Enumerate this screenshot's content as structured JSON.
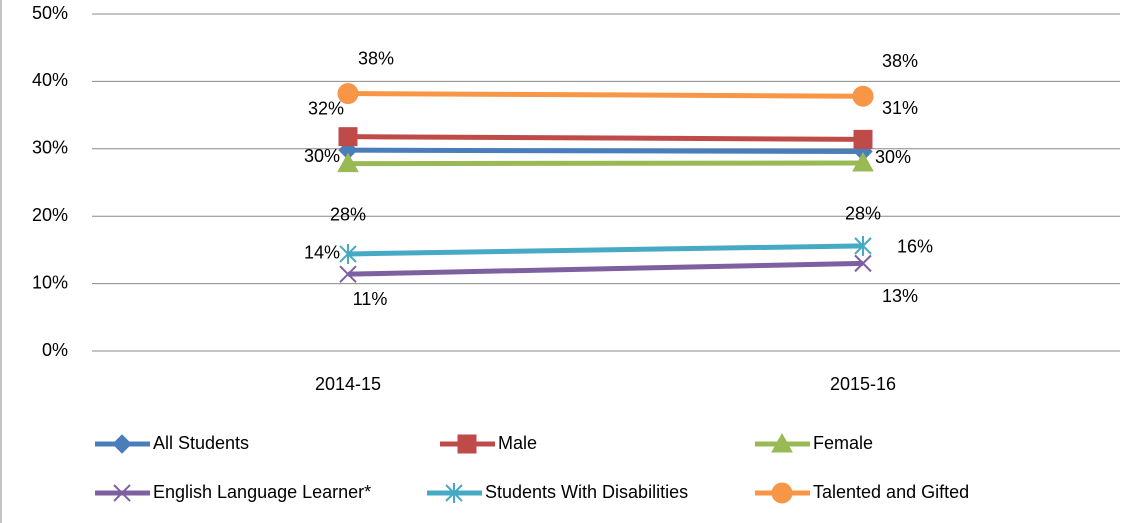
{
  "chart_data": {
    "type": "line",
    "categories": [
      "2014-15",
      "2015-16"
    ],
    "series": [
      {
        "name": "All Students",
        "color": "#4a7ebb",
        "marker": "diamond",
        "values": [
          29.8,
          29.6
        ],
        "value_labels": [
          "30%",
          "30%"
        ]
      },
      {
        "name": "Male",
        "color": "#be4b48",
        "marker": "square",
        "values": [
          31.8,
          31.4
        ],
        "value_labels": [
          "32%",
          "31%"
        ]
      },
      {
        "name": "Female",
        "color": "#98b954",
        "marker": "triangle",
        "values": [
          27.8,
          27.9
        ],
        "value_labels": [
          "28%",
          "28%"
        ]
      },
      {
        "name": "English Language Learner*",
        "color": "#7d60a0",
        "marker": "x",
        "values": [
          11.4,
          13.0
        ],
        "value_labels": [
          "11%",
          "13%"
        ]
      },
      {
        "name": "Students With Disabilities",
        "color": "#46aac5",
        "marker": "star",
        "values": [
          14.4,
          15.6
        ],
        "value_labels": [
          "14%",
          "16%"
        ]
      },
      {
        "name": "Talented and Gifted",
        "color": "#f79646",
        "marker": "circle",
        "values": [
          38.2,
          37.8
        ],
        "value_labels": [
          "38%",
          "38%"
        ]
      }
    ],
    "ylim": [
      0,
      50
    ],
    "yticks": [
      {
        "value": 0,
        "label": "0%"
      },
      {
        "value": 10,
        "label": "10%"
      },
      {
        "value": 20,
        "label": "20%"
      },
      {
        "value": 30,
        "label": "30%"
      },
      {
        "value": 40,
        "label": "40%"
      },
      {
        "value": 50,
        "label": "50%"
      }
    ],
    "grid": true,
    "legend": "bottom"
  }
}
